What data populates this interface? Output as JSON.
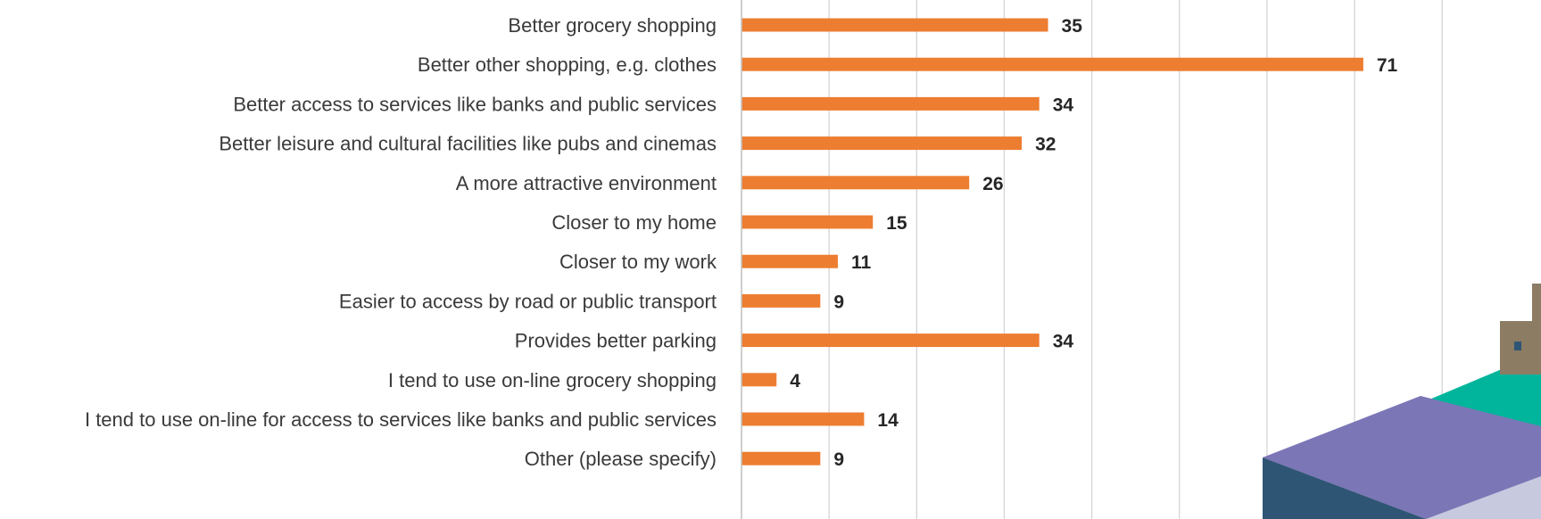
{
  "chart_data": {
    "type": "bar",
    "orientation": "horizontal",
    "categories": [
      "Better grocery shopping",
      "Better other shopping, e.g. clothes",
      "Better access to services like banks and public services",
      "Better leisure and cultural facilities like pubs and cinemas",
      "A more attractive environment",
      "Closer to my home",
      "Closer to my work",
      "Easier to access by road or public transport",
      "Provides better parking",
      "I tend to use on-line grocery shopping",
      "I tend to use on-line for access to services like banks and public services",
      "Other (please specify)"
    ],
    "values": [
      35,
      71,
      34,
      32,
      26,
      15,
      11,
      9,
      34,
      4,
      14,
      9
    ],
    "xlim": [
      0,
      80
    ],
    "grid": true,
    "legend": "none"
  },
  "colors": {
    "bar": "#ed7d31",
    "illustration_dark": "#2f5575",
    "illustration_purple": "#7b76b6",
    "illustration_teal": "#00b59b",
    "illustration_light": "#c7c9df",
    "illustration_wall": "#8c7c63"
  },
  "decoration": {
    "icon": "town-isometric-illustration-icon"
  }
}
